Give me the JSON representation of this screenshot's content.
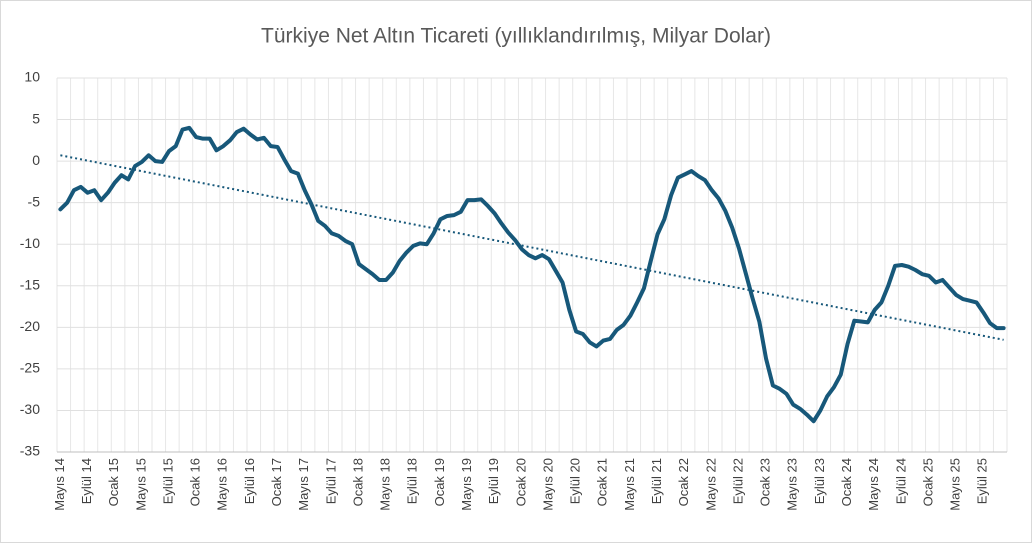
{
  "chart_data": {
    "type": "line",
    "title": "Türkiye Net Altın Ticareti (yıllıklandırılmış, Milyar Dolar)",
    "categories": [
      "Mayıs 14",
      null,
      null,
      null,
      "Eylül 14",
      null,
      null,
      null,
      "Ocak 15",
      null,
      null,
      null,
      "Mayıs 15",
      null,
      null,
      null,
      "Eylül 15",
      null,
      null,
      null,
      "Ocak 16",
      null,
      null,
      null,
      "Mayıs 16",
      null,
      null,
      null,
      "Eylül 16",
      null,
      null,
      null,
      "Ocak 17",
      null,
      null,
      null,
      "Mayıs 17",
      null,
      null,
      null,
      "Eylül 17",
      null,
      null,
      null,
      "Ocak 18",
      null,
      null,
      null,
      "Mayıs 18",
      null,
      null,
      null,
      "Eylül 18",
      null,
      null,
      null,
      "Ocak 19",
      null,
      null,
      null,
      "Mayıs 19",
      null,
      null,
      null,
      "Eylül 19",
      null,
      null,
      null,
      "Ocak 20",
      null,
      null,
      null,
      "Mayıs 20",
      null,
      null,
      null,
      "Eylül 20",
      null,
      null,
      null,
      "Ocak 21",
      null,
      null,
      null,
      "Mayıs 21",
      null,
      null,
      null,
      "Eylül 21",
      null,
      null,
      null,
      "Ocak 22",
      null,
      null,
      null,
      "Mayıs 22",
      null,
      null,
      null,
      "Eylül 22",
      null,
      null,
      null,
      "Ocak 23",
      null,
      null,
      null,
      "Mayıs 23",
      null,
      null,
      null,
      "Eylül 23",
      null,
      null,
      null,
      "Ocak 24",
      null,
      null,
      null,
      "Mayıs 24",
      null,
      null,
      null,
      "Eylül 24",
      null,
      null,
      null,
      "Ocak 25",
      null,
      null,
      null,
      "Mayıs 25",
      null,
      null,
      null,
      "Eylül 25",
      null,
      null,
      null
    ],
    "series": [
      {
        "color": "#17587a",
        "values": [
          -5.8,
          -5,
          -3.5,
          -3.1,
          -3.8,
          -3.5,
          -4.7,
          -3.8,
          -2.6,
          -1.7,
          -2.2,
          -0.6,
          -0.1,
          0.7,
          0,
          -0.1,
          1.2,
          1.8,
          3.8,
          4,
          2.9,
          2.7,
          2.7,
          1.3,
          1.8,
          2.5,
          3.5,
          3.9,
          3.2,
          2.6,
          2.8,
          1.8,
          1.7,
          0.2,
          -1.2,
          -1.5,
          -3.5,
          -5.2,
          -7.2,
          -7.8,
          -8.7,
          -9,
          -9.6,
          -10,
          -12.4,
          -13,
          -13.6,
          -14.3,
          -14.3,
          -13.4,
          -12,
          -11,
          -10.2,
          -9.9,
          -10,
          -8.7,
          -7,
          -6.6,
          -6.5,
          -6.1,
          -4.7,
          -4.7,
          -4.6,
          -5.4,
          -6.3,
          -7.5,
          -8.6,
          -9.5,
          -10.6,
          -11.3,
          -11.7,
          -11.3,
          -11.8,
          -13.2,
          -14.6,
          -17.9,
          -20.5,
          -20.8,
          -21.8,
          -22.3,
          -21.6,
          -21.4,
          -20.3,
          -19.7,
          -18.6,
          -17,
          -15.3,
          -12,
          -8.8,
          -7,
          -4.1,
          -2,
          -1.6,
          -1.2,
          -1.8,
          -2.3,
          -3.5,
          -4.5,
          -6,
          -8,
          -10.5,
          -13.5,
          -16.5,
          -19.3,
          -23.8,
          -27,
          -27.4,
          -28,
          -29.3,
          -29.8,
          -30.5,
          -31.3,
          -30,
          -28.3,
          -27.2,
          -25.7,
          -22,
          -19.2,
          -19.3,
          -19.4,
          -17.9,
          -17,
          -15,
          -12.6,
          -12.5,
          -12.7,
          -13.1,
          -13.6,
          -13.8,
          -14.6,
          -14.3,
          -15.2,
          -16.1,
          -16.6,
          -16.8,
          -17,
          -18.2,
          -19.5,
          -20.1,
          -20.1
        ]
      }
    ],
    "trendline": {
      "color": "#17587a",
      "values": [
        0.7,
        -21.5
      ]
    },
    "ylim": [
      -35,
      10
    ],
    "yticks": [
      -35,
      -30,
      -25,
      -20,
      -15,
      -10,
      -5,
      0,
      5,
      10
    ],
    "grid": true
  }
}
